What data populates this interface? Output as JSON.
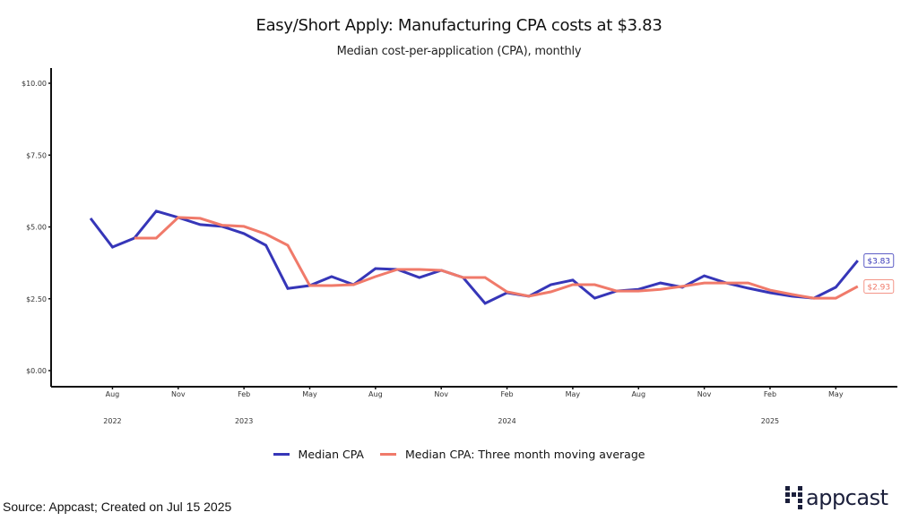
{
  "header": {
    "title": "Easy/Short Apply: Manufacturing CPA costs at $3.83",
    "subtitle": "Median cost-per-application (CPA), monthly"
  },
  "footer": {
    "source": "Source: Appcast; Created on Jul 15 2025",
    "logo_text": "appcast"
  },
  "colors": {
    "median": "#3636b8",
    "moving_avg": "#f07a6a",
    "axis": "#111111"
  },
  "chart_data": {
    "type": "line",
    "title": "Easy/Short Apply: Manufacturing CPA costs at $3.83",
    "subtitle": "Median cost-per-application (CPA), monthly",
    "xlabel": "",
    "ylabel": "",
    "ylim": [
      0,
      10
    ],
    "yticks": [
      0,
      2.5,
      5,
      7.5,
      10
    ],
    "ytick_labels": [
      "$0.00",
      "$2.50",
      "$5.00",
      "$7.50",
      "$10.00"
    ],
    "grid": false,
    "legend_position": "bottom",
    "x": [
      "2022-07",
      "2022-08",
      "2022-09",
      "2022-10",
      "2022-11",
      "2022-12",
      "2023-01",
      "2023-02",
      "2023-03",
      "2023-04",
      "2023-05",
      "2023-06",
      "2023-07",
      "2023-08",
      "2023-09",
      "2023-10",
      "2023-11",
      "2023-12",
      "2024-01",
      "2024-02",
      "2024-03",
      "2024-04",
      "2024-05",
      "2024-06",
      "2024-07",
      "2024-08",
      "2024-09",
      "2024-10",
      "2024-11",
      "2024-12",
      "2025-01",
      "2025-02",
      "2025-03",
      "2025-04",
      "2025-05",
      "2025-06"
    ],
    "xticks": [
      {
        "month_index": 1,
        "label": "Aug",
        "year": "2022"
      },
      {
        "month_index": 4,
        "label": "Nov",
        "year": ""
      },
      {
        "month_index": 7,
        "label": "Feb",
        "year": "2023"
      },
      {
        "month_index": 10,
        "label": "May",
        "year": ""
      },
      {
        "month_index": 13,
        "label": "Aug",
        "year": ""
      },
      {
        "month_index": 16,
        "label": "Nov",
        "year": ""
      },
      {
        "month_index": 19,
        "label": "Feb",
        "year": "2024"
      },
      {
        "month_index": 22,
        "label": "May",
        "year": ""
      },
      {
        "month_index": 25,
        "label": "Aug",
        "year": ""
      },
      {
        "month_index": 28,
        "label": "Nov",
        "year": ""
      },
      {
        "month_index": 31,
        "label": "Feb",
        "year": "2025"
      },
      {
        "month_index": 34,
        "label": "May",
        "year": ""
      }
    ],
    "series": [
      {
        "name": "Median CPA",
        "color": "#3636b8",
        "end_label": "$3.83",
        "values": [
          5.3,
          4.3,
          4.61,
          5.55,
          5.33,
          5.08,
          5.02,
          4.77,
          4.36,
          2.86,
          2.96,
          3.27,
          2.99,
          3.55,
          3.52,
          3.24,
          3.49,
          3.24,
          2.34,
          2.71,
          2.59,
          2.99,
          3.15,
          2.52,
          2.77,
          2.83,
          3.05,
          2.9,
          3.3,
          3.05,
          2.87,
          2.71,
          2.59,
          2.52,
          2.9,
          3.83
        ]
      },
      {
        "name": "Median CPA: Three month moving average",
        "color": "#f07a6a",
        "end_label": "$2.93",
        "values": [
          null,
          null,
          4.61,
          4.61,
          5.33,
          5.3,
          5.06,
          5.02,
          4.75,
          4.36,
          2.96,
          2.96,
          2.99,
          3.27,
          3.52,
          3.52,
          3.49,
          3.24,
          3.24,
          2.74,
          2.59,
          2.74,
          2.99,
          2.99,
          2.77,
          2.77,
          2.83,
          2.93,
          3.05,
          3.05,
          3.05,
          2.8,
          2.65,
          2.52,
          2.52,
          2.93
        ]
      }
    ]
  }
}
